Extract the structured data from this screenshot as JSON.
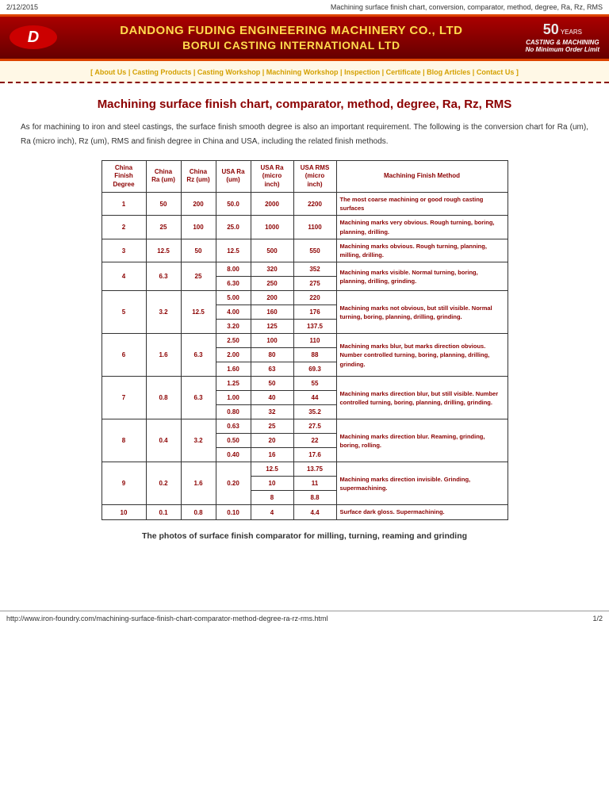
{
  "meta": {
    "date": "2/12/2015",
    "title": "Machining surface finish chart, conversion, comparator, method, degree, Ra, Rz, RMS"
  },
  "banner": {
    "company1": "DANDONG FUDING ENGINEERING MACHINERY CO., LTD",
    "company2": "BORUI CASTING INTERNATIONAL LTD",
    "badgeYears": "50",
    "badgeYearsLabel": "YEARS",
    "badgeL1": "CASTING & MACHINING",
    "badgeL2": "No Minimum Order Limit"
  },
  "nav": "[  About Us  |   Casting Products  |   Casting Workshop  |   Machining Workshop  |   Inspection  |   Certificate  |   Blog Articles  |   Contact Us  ]",
  "heading": "Machining surface finish chart, comparator, method, degree, Ra, Rz, RMS",
  "intro": "As for machining to iron and steel castings, the surface finish smooth degree is also an important requirement. The following is the conversion chart for Ra (um), Ra (micro inch), Rz (um), RMS and finish degree in China and USA, including the related finish methods.",
  "table": {
    "headers": [
      "China Finish Degree",
      "China Ra (um)",
      "China Rz (um)",
      "USA Ra (um)",
      "USA Ra (micro inch)",
      "USA RMS (micro inch)",
      "Machining Finish Method"
    ],
    "rows": [
      {
        "cfd": "1",
        "cra": "50",
        "crz": "200",
        "sub": [
          [
            "50.0",
            "2000",
            "2200"
          ]
        ],
        "method": "The most coarse machining or good rough casting surfaces"
      },
      {
        "cfd": "2",
        "cra": "25",
        "crz": "100",
        "sub": [
          [
            "25.0",
            "1000",
            "1100"
          ]
        ],
        "method": "Machining marks very obvious. Rough turning, boring, planning, drilling."
      },
      {
        "cfd": "3",
        "cra": "12.5",
        "crz": "50",
        "sub": [
          [
            "12.5",
            "500",
            "550"
          ]
        ],
        "method": "Machining marks obvious. Rough turning, planning, milling, drilling."
      },
      {
        "cfd": "4",
        "cra": "6.3",
        "crz": "25",
        "sub": [
          [
            "8.00",
            "320",
            "352"
          ],
          [
            "6.30",
            "250",
            "275"
          ]
        ],
        "method": "Machining marks visible. Normal turning, boring, planning, drilling, grinding."
      },
      {
        "cfd": "5",
        "cra": "3.2",
        "crz": "12.5",
        "sub": [
          [
            "5.00",
            "200",
            "220"
          ],
          [
            "4.00",
            "160",
            "176"
          ],
          [
            "3.20",
            "125",
            "137.5"
          ]
        ],
        "method": "Machining marks not obvious, but still visible. Normal turning, boring, planning, drilling, grinding."
      },
      {
        "cfd": "6",
        "cra": "1.6",
        "crz": "6.3",
        "sub": [
          [
            "2.50",
            "100",
            "110"
          ],
          [
            "2.00",
            "80",
            "88"
          ],
          [
            "1.60",
            "63",
            "69.3"
          ]
        ],
        "method": "Machining marks blur, but marks direction obvious. Number controlled turning, boring, planning, drilling, grinding."
      },
      {
        "cfd": "7",
        "cra": "0.8",
        "crz": "6.3",
        "sub": [
          [
            "1.25",
            "50",
            "55"
          ],
          [
            "1.00",
            "40",
            "44"
          ],
          [
            "0.80",
            "32",
            "35.2"
          ]
        ],
        "method": "Machining marks direction blur, but still visible. Number controlled turning, boring, planning, drilling, grinding."
      },
      {
        "cfd": "8",
        "cra": "0.4",
        "crz": "3.2",
        "sub": [
          [
            "0.63",
            "25",
            "27.5"
          ],
          [
            "0.50",
            "20",
            "22"
          ],
          [
            "0.40",
            "16",
            "17.6"
          ]
        ],
        "method": "Machining marks direction blur. Reaming, grinding, boring, rolling."
      },
      {
        "cfd": "9",
        "cra": "0.2",
        "crz": "1.6",
        "usr": "0.20",
        "sub": [
          [
            "",
            "12.5",
            "13.75"
          ],
          [
            "",
            "10",
            "11"
          ],
          [
            "",
            "8",
            "8.8"
          ]
        ],
        "method": "Machining marks direction invisible. Grinding, supermachining."
      },
      {
        "cfd": "10",
        "cra": "0.1",
        "crz": "0.8",
        "sub": [
          [
            "0.10",
            "4",
            "4.4"
          ]
        ],
        "method": "Surface dark gloss. Supermachining."
      }
    ]
  },
  "subHeading": "The photos of surface finish comparator for milling, turning, reaming and grinding",
  "footer": {
    "url": "http://www.iron-foundry.com/machining-surface-finish-chart-comparator-method-degree-ra-rz-rms.html",
    "page": "1/2"
  }
}
